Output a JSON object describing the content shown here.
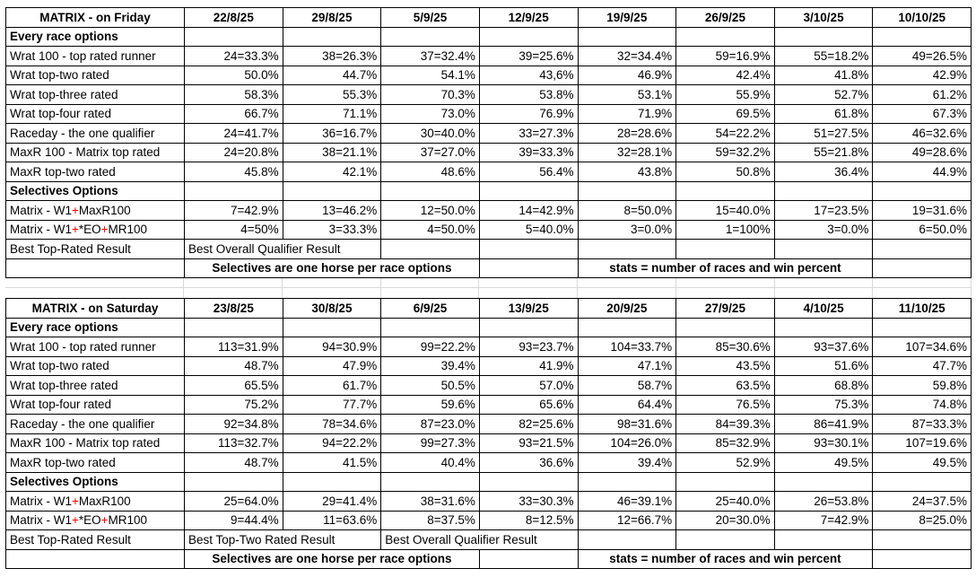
{
  "colors": {
    "peach": "#FCE4D6",
    "blue": "#B5E4F2",
    "green": "#B7F1B1",
    "yellow": "#FFFF00",
    "red": "#FF0000",
    "border": "#000000",
    "gridline": "#D9D9D9"
  },
  "tables": [
    {
      "title": "MATRIX - on Friday",
      "dates": [
        "22/8/25",
        "29/8/25",
        "5/9/25",
        "12/9/25",
        "19/9/25",
        "26/9/25",
        "3/10/25",
        "10/10/25"
      ],
      "rows": [
        {
          "type": "section",
          "label": "Every race options"
        },
        {
          "label": "Wrat 100 - top rated runner",
          "label_bg": "blue",
          "cells": [
            {
              "v": "24=33.3%",
              "bg": "white"
            },
            {
              "v": "38=26.3%",
              "bg": "blue"
            },
            {
              "v": "37=32.4%",
              "bg": "white"
            },
            {
              "v": "39=25.6%",
              "bg": "white"
            },
            {
              "v": "32=34.4%",
              "bg": "blue"
            },
            {
              "v": "59=16.9%",
              "bg": "white"
            },
            {
              "v": "55=18.2%",
              "bg": "white"
            },
            {
              "v": "49=26.5%",
              "bg": "white"
            }
          ]
        },
        {
          "label": "Wrat top-two rated",
          "label_bg": "green",
          "cells": [
            {
              "v": "50.0%",
              "bg": "green"
            },
            {
              "v": "44.7%",
              "bg": "green"
            },
            {
              "v": "54.1%",
              "bg": "green"
            },
            {
              "v": "43,6%",
              "bg": "white"
            },
            {
              "v": "46.9%",
              "bg": "green"
            },
            {
              "v": "42.4%",
              "bg": "white"
            },
            {
              "v": "41.8%",
              "bg": "green"
            },
            {
              "v": "42.9%",
              "bg": "white"
            }
          ]
        },
        {
          "label": "Wrat top-three rated",
          "label_bg": "white",
          "cells": [
            {
              "v": "58.3%",
              "bg": "white"
            },
            {
              "v": "55.3%",
              "bg": "white"
            },
            {
              "v": "70.3%",
              "bg": "white"
            },
            {
              "v": "53.8%",
              "bg": "white"
            },
            {
              "v": "53.1%",
              "bg": "white"
            },
            {
              "v": "55.9%",
              "bg": "white"
            },
            {
              "v": "52.7%",
              "bg": "white"
            },
            {
              "v": "61.2%",
              "bg": "white"
            }
          ]
        },
        {
          "label": "Wrat top-four rated",
          "label_bg": "white",
          "cells": [
            {
              "v": "66.7%",
              "bg": "white"
            },
            {
              "v": "71.1%",
              "bg": "white"
            },
            {
              "v": "73.0%",
              "bg": "white"
            },
            {
              "v": "76.9%",
              "bg": "white"
            },
            {
              "v": "71.9%",
              "bg": "white"
            },
            {
              "v": "69.5%",
              "bg": "white"
            },
            {
              "v": "61.8%",
              "bg": "white"
            },
            {
              "v": "67.3%",
              "bg": "white"
            }
          ]
        },
        {
          "label": "Raceday - the one qualifier",
          "label_bg": "blue",
          "cells": [
            {
              "v": "24=41.7%",
              "bg": "blue"
            },
            {
              "v": "36=16.7%",
              "bg": "white"
            },
            {
              "v": "30=40.0%",
              "bg": "blue"
            },
            {
              "v": "33=27.3%",
              "bg": "white"
            },
            {
              "v": "28=28.6%",
              "bg": "white"
            },
            {
              "v": "54=22.2%",
              "bg": "white"
            },
            {
              "v": "51=27.5%",
              "bg": "yellow"
            },
            {
              "v": "46=32.6%",
              "bg": "blue"
            }
          ]
        },
        {
          "label": "MaxR 100 - Matrix top rated",
          "label_bg": "blue",
          "cells": [
            {
              "v": "24=20.8%",
              "bg": "white"
            },
            {
              "v": "38=21.1%",
              "bg": "white"
            },
            {
              "v": "37=27.0%",
              "bg": "white"
            },
            {
              "v": "39=33.3%",
              "bg": "blue"
            },
            {
              "v": "32=28.1%",
              "bg": "white"
            },
            {
              "v": "59=32.2%",
              "bg": "blue"
            },
            {
              "v": "55=21.8%",
              "bg": "white"
            },
            {
              "v": "49=28.6%",
              "bg": "white"
            }
          ]
        },
        {
          "label": "MaxR top-two rated",
          "label_bg": "green",
          "cells": [
            {
              "v": "45.8%",
              "bg": "white"
            },
            {
              "v": "42.1%",
              "bg": "white"
            },
            {
              "v": "48.6%",
              "bg": "white"
            },
            {
              "v": "56.4%",
              "bg": "green"
            },
            {
              "v": "43.8%",
              "bg": "white"
            },
            {
              "v": "50.8%",
              "bg": "green"
            },
            {
              "v": "36.4%",
              "bg": "white"
            },
            {
              "v": "44.9%",
              "bg": "green"
            }
          ]
        },
        {
          "type": "section",
          "label": "Selectives Options"
        },
        {
          "label": "Matrix - W1+MaxR100",
          "label_bg": "white",
          "red_plus": true,
          "cells": [
            {
              "v": "7=42.9%",
              "bg": "yellow"
            },
            {
              "v": "13=46.2%",
              "bg": "yellow"
            },
            {
              "v": "12=50.0%",
              "bg": "yellow"
            },
            {
              "v": "14=42.9%",
              "bg": "yellow"
            },
            {
              "v": "8=50.0%",
              "bg": "yellow"
            },
            {
              "v": "15=40.0%",
              "bg": "yellow"
            },
            {
              "v": "17=23.5%",
              "bg": "white"
            },
            {
              "v": "19=31.6%",
              "bg": "white"
            }
          ]
        },
        {
          "label": "Matrix - W1+*EO+MR100",
          "label_bg": "white",
          "red_plus": true,
          "cells": [
            {
              "v": "4=50%",
              "bg": "white"
            },
            {
              "v": "3=33.3%",
              "bg": "white"
            },
            {
              "v": "4=50.0%",
              "bg": "white"
            },
            {
              "v": "5=40.0%",
              "bg": "white"
            },
            {
              "v": "3=0.0%",
              "bg": "white"
            },
            {
              "v": "1=100%",
              "bg": "white"
            },
            {
              "v": "3=0.0%",
              "bg": "white"
            },
            {
              "v": "6=50.0%",
              "bg": "yellow"
            }
          ]
        }
      ],
      "best": {
        "label": "Best Top-Rated Result",
        "label_bg": "blue",
        "segments": [
          {
            "text": "Best Overall Qualifier Result",
            "bg": "yellow",
            "span": 2
          },
          {
            "text": "",
            "bg": "peach",
            "span": 1
          },
          {
            "text": "",
            "bg": "peach",
            "span": 1
          },
          {
            "text": "",
            "bg": "peach",
            "span": 1
          },
          {
            "text": "",
            "bg": "peach",
            "span": 1
          },
          {
            "text": "",
            "bg": "peach",
            "span": 1
          },
          {
            "text": "",
            "bg": "peach",
            "span": 1
          }
        ]
      },
      "footer": {
        "segments": [
          {
            "text": "",
            "bg": "none",
            "span": 1
          },
          {
            "text": "Selectives are one horse per race options",
            "bg": "peach",
            "span": 3
          },
          {
            "text": "",
            "bg": "none",
            "span": 1
          },
          {
            "text": "stats = number of races and win percent",
            "bg": "peach",
            "span": 3
          },
          {
            "text": "",
            "bg": "none",
            "span": 1
          }
        ]
      }
    },
    {
      "title": "MATRIX - on Saturday",
      "dates": [
        "23/8/25",
        "30/8/25",
        "6/9/25",
        "13/9/25",
        "20/9/25",
        "27/9/25",
        "4/10/25",
        "11/10/25"
      ],
      "rows": [
        {
          "type": "section",
          "label": "Every race options"
        },
        {
          "label": "Wrat 100 - top rated runner",
          "label_bg": "blue",
          "cells": [
            {
              "v": "113=31.9%",
              "bg": "white"
            },
            {
              "v": "94=30.9%",
              "bg": "white"
            },
            {
              "v": "99=22.2%",
              "bg": "white"
            },
            {
              "v": "93=23.7%",
              "bg": "white"
            },
            {
              "v": "104=33.7%",
              "bg": "blue"
            },
            {
              "v": "85=30.6%",
              "bg": "white"
            },
            {
              "v": "93=37.6%",
              "bg": "white"
            },
            {
              "v": "107=34.6%",
              "bg": "blue"
            }
          ]
        },
        {
          "label": "Wrat top-two rated",
          "label_bg": "green",
          "cells": [
            {
              "v": "48.7%",
              "bg": "green"
            },
            {
              "v": "47.9%",
              "bg": "green"
            },
            {
              "v": "39.4%",
              "bg": "white"
            },
            {
              "v": "41.9%",
              "bg": "green"
            },
            {
              "v": "47.1%",
              "bg": "green"
            },
            {
              "v": "43.5%",
              "bg": "white"
            },
            {
              "v": "51.6%",
              "bg": "green"
            },
            {
              "v": "47.7%",
              "bg": "white"
            }
          ]
        },
        {
          "label": "Wrat top-three rated",
          "label_bg": "white",
          "cells": [
            {
              "v": "65.5%",
              "bg": "white"
            },
            {
              "v": "61.7%",
              "bg": "white"
            },
            {
              "v": "50.5%",
              "bg": "white"
            },
            {
              "v": "57.0%",
              "bg": "white"
            },
            {
              "v": "58.7%",
              "bg": "white"
            },
            {
              "v": "63.5%",
              "bg": "white"
            },
            {
              "v": "68.8%",
              "bg": "white"
            },
            {
              "v": "59.8%",
              "bg": "white"
            }
          ]
        },
        {
          "label": "Wrat top-four rated",
          "label_bg": "white",
          "cells": [
            {
              "v": "75.2%",
              "bg": "white"
            },
            {
              "v": "77.7%",
              "bg": "white"
            },
            {
              "v": "59.6%",
              "bg": "white"
            },
            {
              "v": "65.6%",
              "bg": "white"
            },
            {
              "v": "64.4%",
              "bg": "white"
            },
            {
              "v": "76.5%",
              "bg": "white"
            },
            {
              "v": "75.3%",
              "bg": "white"
            },
            {
              "v": "74.8%",
              "bg": "white"
            }
          ]
        },
        {
          "label": "Raceday - the one qualifier",
          "label_bg": "blue",
          "cells": [
            {
              "v": "92=34.8%",
              "bg": "blue"
            },
            {
              "v": "78=34.6%",
              "bg": "blue"
            },
            {
              "v": "87=23.0%",
              "bg": "white"
            },
            {
              "v": "82=25.6%",
              "bg": "blue"
            },
            {
              "v": "98=31.6%",
              "bg": "white"
            },
            {
              "v": "84=39.3%",
              "bg": "blue"
            },
            {
              "v": "86=41.9%",
              "bg": "blue"
            },
            {
              "v": "87=33.3%",
              "bg": "white"
            }
          ]
        },
        {
          "label": "MaxR 100 - Matrix top rated",
          "label_bg": "blue",
          "cells": [
            {
              "v": "113=32.7%",
              "bg": "white"
            },
            {
              "v": "94=22.2%",
              "bg": "white"
            },
            {
              "v": "99=27.3%",
              "bg": "blue"
            },
            {
              "v": "93=21.5%",
              "bg": "white"
            },
            {
              "v": "104=26.0%",
              "bg": "white"
            },
            {
              "v": "85=32.9%",
              "bg": "white"
            },
            {
              "v": "93=30.1%",
              "bg": "white"
            },
            {
              "v": "107=19.6%",
              "bg": "white"
            }
          ]
        },
        {
          "label": "MaxR top-two rated",
          "label_bg": "green",
          "cells": [
            {
              "v": "48.7%",
              "bg": "green"
            },
            {
              "v": "41.5%",
              "bg": "white"
            },
            {
              "v": "40.4%",
              "bg": "green"
            },
            {
              "v": "36.6%",
              "bg": "white"
            },
            {
              "v": "39.4%",
              "bg": "white"
            },
            {
              "v": "52.9%",
              "bg": "green"
            },
            {
              "v": "49.5%",
              "bg": "white"
            },
            {
              "v": "49.5%",
              "bg": "green"
            }
          ]
        },
        {
          "type": "section",
          "label": "Selectives Options"
        },
        {
          "label": "Matrix - W1+MaxR100",
          "label_bg": "white",
          "red_plus": true,
          "cells": [
            {
              "v": "25=64.0%",
              "bg": "yellow"
            },
            {
              "v": "29=41.4%",
              "bg": "white"
            },
            {
              "v": "38=31.6%",
              "bg": "white"
            },
            {
              "v": "33=30.3%",
              "bg": "yellow"
            },
            {
              "v": "46=39.1%",
              "bg": "white"
            },
            {
              "v": "25=40.0%",
              "bg": "yellow"
            },
            {
              "v": "26=53.8%",
              "bg": "yellow"
            },
            {
              "v": "24=37.5%",
              "bg": "yellow"
            }
          ]
        },
        {
          "label": "Matrix - W1+*EO+MR100",
          "label_bg": "white",
          "red_plus": true,
          "cells": [
            {
              "v": "9=44.4%",
              "bg": "white"
            },
            {
              "v": "11=63.6%",
              "bg": "yellow"
            },
            {
              "v": "8=37.5%",
              "bg": "yellow"
            },
            {
              "v": "8=12.5%",
              "bg": "white"
            },
            {
              "v": "12=66.7%",
              "bg": "yellow"
            },
            {
              "v": "20=30.0%",
              "bg": "white"
            },
            {
              "v": "7=42.9%",
              "bg": "white"
            },
            {
              "v": "8=25.0%",
              "bg": "white"
            }
          ]
        }
      ],
      "best": {
        "label": "Best Top-Rated Result",
        "label_bg": "blue",
        "segments": [
          {
            "text": "Best Top-Two Rated Result",
            "bg": "green",
            "span": 2
          },
          {
            "text": "Best Overall Qualifier Result",
            "bg": "yellow",
            "span": 2
          },
          {
            "text": "",
            "bg": "peach",
            "span": 1
          },
          {
            "text": "",
            "bg": "peach",
            "span": 1
          },
          {
            "text": "",
            "bg": "peach",
            "span": 1
          },
          {
            "text": "",
            "bg": "peach",
            "span": 1
          }
        ]
      },
      "footer": {
        "segments": [
          {
            "text": "",
            "bg": "none",
            "span": 1
          },
          {
            "text": "Selectives are one horse per race options",
            "bg": "peach",
            "span": 3
          },
          {
            "text": "",
            "bg": "none",
            "span": 1
          },
          {
            "text": "stats = number of races and win percent",
            "bg": "peach",
            "span": 3
          },
          {
            "text": "",
            "bg": "none",
            "span": 1
          }
        ]
      }
    }
  ]
}
